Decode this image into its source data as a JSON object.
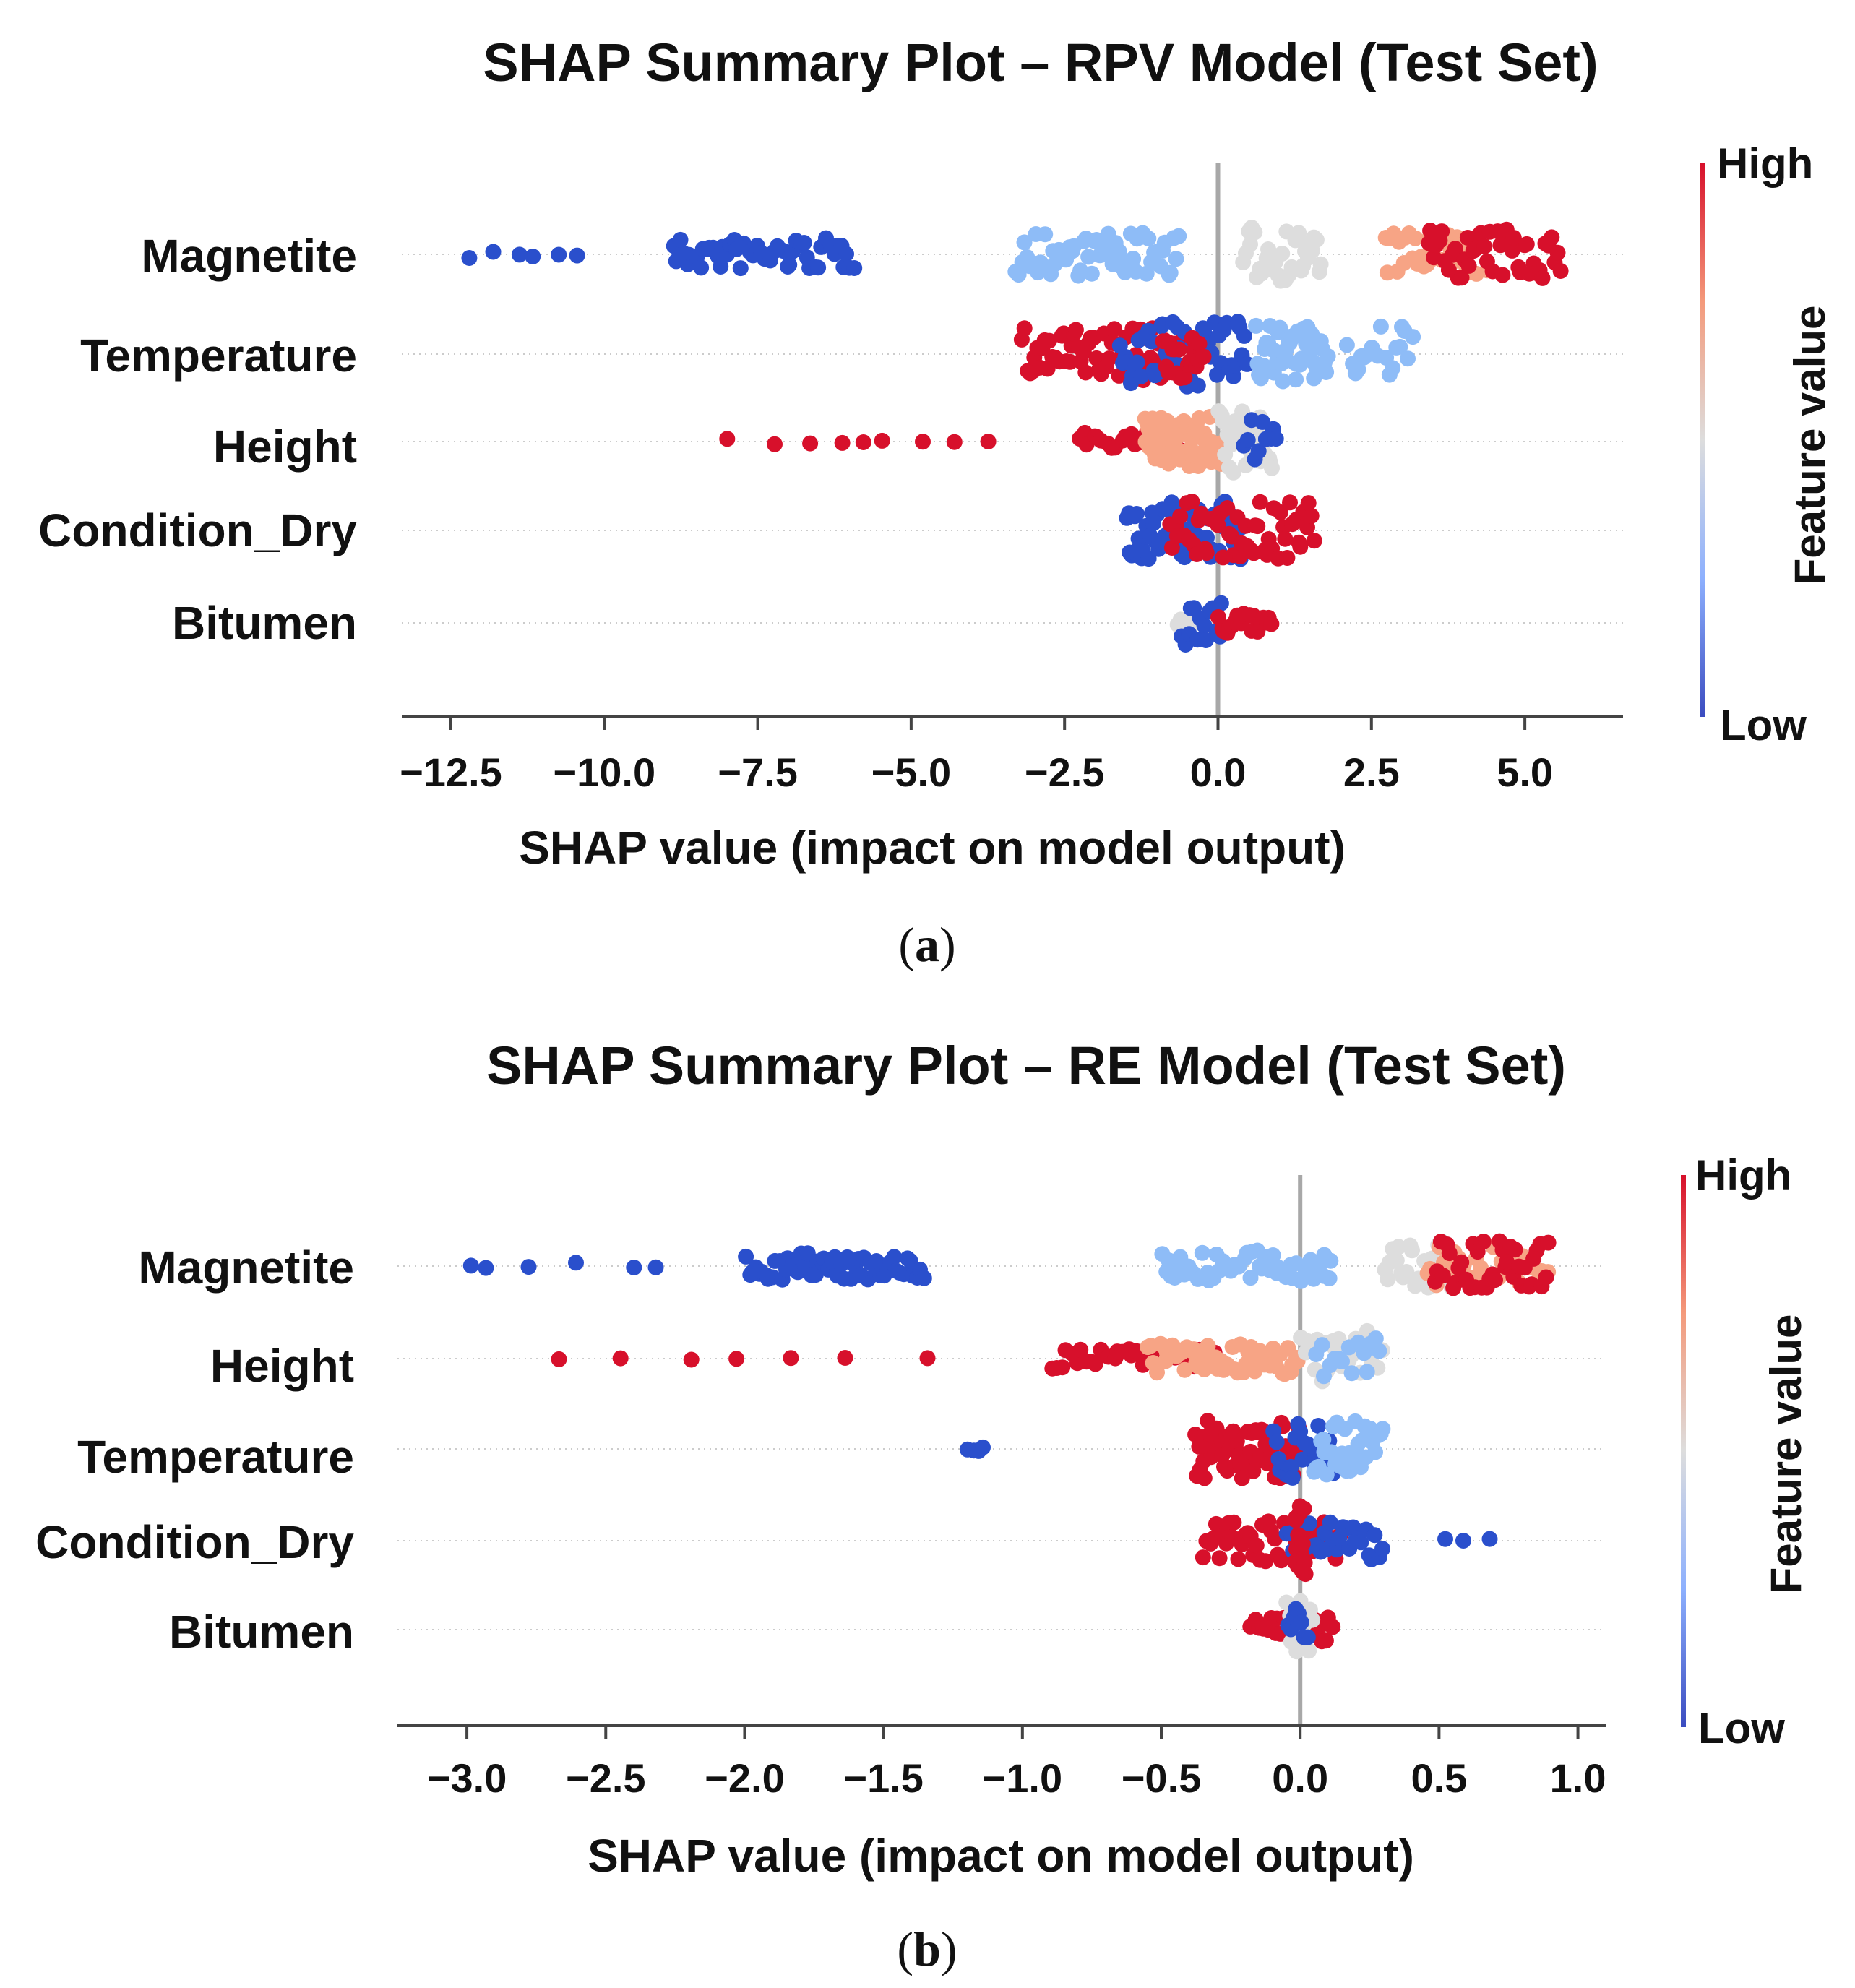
{
  "colors": {
    "high": "#d7102b",
    "mid_high": "#f7a485",
    "mid": "#dddddd",
    "mid_low": "#8ebcf7",
    "low": "#2a4fcc",
    "axis": "#444444",
    "zero_line": "#a8a8a8"
  },
  "chart_data": [
    {
      "type": "scatter",
      "subtype": "shap-summary-beeswarm",
      "title": "SHAP Summary Plot – RPV Model (Test Set)",
      "xlabel": "SHAP value (impact on model output)",
      "panel_prefix": "(",
      "panel_letter": "a",
      "panel_suffix": ")",
      "xlim": [
        -13.3,
        6.6
      ],
      "ticks": [
        -12.5,
        -10.0,
        -7.5,
        -5.0,
        -2.5,
        0.0,
        2.5,
        5.0
      ],
      "tick_labels": [
        "−12.5",
        "−10.0",
        "−7.5",
        "−5.0",
        "−2.5",
        "0.0",
        "2.5",
        "5.0"
      ],
      "colorbar": {
        "title": "Feature value",
        "high_label": "High",
        "low_label": "Low"
      },
      "features": [
        {
          "name": "Magnetite",
          "groups": [
            {
              "color": "low",
              "min": -12.2,
              "max": -10.3,
              "n": 6,
              "spread": 0.12
            },
            {
              "color": "low",
              "min": -8.9,
              "max": -5.9,
              "n": 55,
              "spread": 0.45
            },
            {
              "color": "mid_low",
              "min": -3.3,
              "max": -0.6,
              "n": 60,
              "spread": 0.6
            },
            {
              "color": "mid",
              "min": 0.4,
              "max": 1.7,
              "n": 35,
              "spread": 0.75
            },
            {
              "color": "mid_high",
              "min": 2.7,
              "max": 4.4,
              "n": 35,
              "spread": 0.6
            },
            {
              "color": "high",
              "min": 3.4,
              "max": 5.6,
              "n": 45,
              "spread": 0.7
            }
          ]
        },
        {
          "name": "Temperature",
          "groups": [
            {
              "color": "high",
              "min": -3.2,
              "max": -0.6,
              "n": 65,
              "spread": 0.75
            },
            {
              "color": "low",
              "min": -1.6,
              "max": 0.5,
              "n": 55,
              "spread": 0.9
            },
            {
              "color": "high",
              "min": -0.9,
              "max": -0.2,
              "n": 20,
              "spread": 0.7
            },
            {
              "color": "mid_low",
              "min": 0.6,
              "max": 1.8,
              "n": 45,
              "spread": 0.8
            },
            {
              "color": "mid_low",
              "min": 2.1,
              "max": 3.2,
              "n": 20,
              "spread": 0.8
            }
          ]
        },
        {
          "name": "Height",
          "groups": [
            {
              "color": "high",
              "min": -8.0,
              "max": -3.5,
              "n": 9,
              "spread": 0.08
            },
            {
              "color": "high",
              "min": -2.3,
              "max": -0.6,
              "n": 22,
              "spread": 0.25
            },
            {
              "color": "mid_high",
              "min": -1.2,
              "max": 0.1,
              "n": 70,
              "spread": 0.7
            },
            {
              "color": "mid",
              "min": 0.0,
              "max": 0.9,
              "n": 35,
              "spread": 0.9
            },
            {
              "color": "low",
              "min": 0.4,
              "max": 1.0,
              "n": 10,
              "spread": 0.6
            }
          ]
        },
        {
          "name": "Condition_Dry",
          "groups": [
            {
              "color": "low",
              "min": -1.5,
              "max": 0.4,
              "n": 70,
              "spread": 0.8
            },
            {
              "color": "high",
              "min": -0.8,
              "max": 1.6,
              "n": 55,
              "spread": 0.8
            }
          ]
        },
        {
          "name": "Bitumen",
          "groups": [
            {
              "color": "mid",
              "min": -0.7,
              "max": -0.1,
              "n": 8,
              "spread": 0.2
            },
            {
              "color": "low",
              "min": -0.6,
              "max": 0.1,
              "n": 14,
              "spread": 0.7
            },
            {
              "color": "high",
              "min": 0.0,
              "max": 0.9,
              "n": 22,
              "spread": 0.3
            }
          ]
        }
      ]
    },
    {
      "type": "scatter",
      "subtype": "shap-summary-beeswarm",
      "title": "SHAP Summary Plot – RE Model (Test Set)",
      "xlabel": "SHAP value (impact on model output)",
      "panel_prefix": "(",
      "panel_letter": "b",
      "panel_suffix": ")",
      "xlim": [
        -3.25,
        1.1
      ],
      "ticks": [
        -3.0,
        -2.5,
        -2.0,
        -1.5,
        -1.0,
        -0.5,
        0.0,
        0.5,
        1.0
      ],
      "tick_labels": [
        "−3.0",
        "−2.5",
        "−2.0",
        "−1.5",
        "−1.0",
        "−0.5",
        "0.0",
        "0.5",
        "1.0"
      ],
      "colorbar": {
        "title": "Feature value",
        "high_label": "High",
        "low_label": "Low"
      },
      "features": [
        {
          "name": "Magnetite",
          "groups": [
            {
              "color": "low",
              "min": -3.08,
              "max": -2.2,
              "n": 6,
              "spread": 0.1
            },
            {
              "color": "low",
              "min": -2.0,
              "max": -1.35,
              "n": 55,
              "spread": 0.4
            },
            {
              "color": "mid_low",
              "min": -0.5,
              "max": 0.12,
              "n": 55,
              "spread": 0.45
            },
            {
              "color": "mid",
              "min": 0.3,
              "max": 0.55,
              "n": 25,
              "spread": 0.7
            },
            {
              "color": "mid_high",
              "min": 0.45,
              "max": 0.9,
              "n": 30,
              "spread": 0.6
            },
            {
              "color": "high",
              "min": 0.48,
              "max": 0.9,
              "n": 40,
              "spread": 0.75
            }
          ]
        },
        {
          "name": "Height",
          "groups": [
            {
              "color": "high",
              "min": -2.7,
              "max": -1.28,
              "n": 7,
              "spread": 0.05
            },
            {
              "color": "high",
              "min": -0.9,
              "max": -0.3,
              "n": 35,
              "spread": 0.3
            },
            {
              "color": "mid_high",
              "min": -0.55,
              "max": 0.0,
              "n": 55,
              "spread": 0.45
            },
            {
              "color": "mid",
              "min": 0.0,
              "max": 0.3,
              "n": 25,
              "spread": 0.8
            },
            {
              "color": "mid_low",
              "min": 0.05,
              "max": 0.3,
              "n": 15,
              "spread": 0.7
            }
          ]
        },
        {
          "name": "Temperature",
          "groups": [
            {
              "color": "low",
              "min": -1.2,
              "max": -1.13,
              "n": 4,
              "spread": 0.1
            },
            {
              "color": "high",
              "min": -0.38,
              "max": 0.0,
              "n": 65,
              "spread": 0.85
            },
            {
              "color": "low",
              "min": -0.1,
              "max": 0.12,
              "n": 25,
              "spread": 0.85
            },
            {
              "color": "mid_low",
              "min": 0.05,
              "max": 0.3,
              "n": 35,
              "spread": 0.8
            }
          ]
        },
        {
          "name": "Condition_Dry",
          "groups": [
            {
              "color": "high",
              "min": -0.35,
              "max": 0.15,
              "n": 45,
              "spread": 0.6
            },
            {
              "color": "low",
              "min": -0.05,
              "max": 0.3,
              "n": 30,
              "spread": 0.6
            },
            {
              "color": "low",
              "min": 0.5,
              "max": 0.7,
              "n": 3,
              "spread": 0.05
            },
            {
              "color": "high",
              "min": -0.02,
              "max": 0.02,
              "n": 20,
              "spread": 1.0
            }
          ]
        },
        {
          "name": "Bitumen",
          "groups": [
            {
              "color": "high",
              "min": -0.18,
              "max": 0.12,
              "n": 25,
              "spread": 0.35
            },
            {
              "color": "mid",
              "min": -0.05,
              "max": 0.05,
              "n": 12,
              "spread": 0.9
            },
            {
              "color": "low",
              "min": -0.05,
              "max": 0.03,
              "n": 8,
              "spread": 0.6
            }
          ]
        }
      ]
    }
  ]
}
